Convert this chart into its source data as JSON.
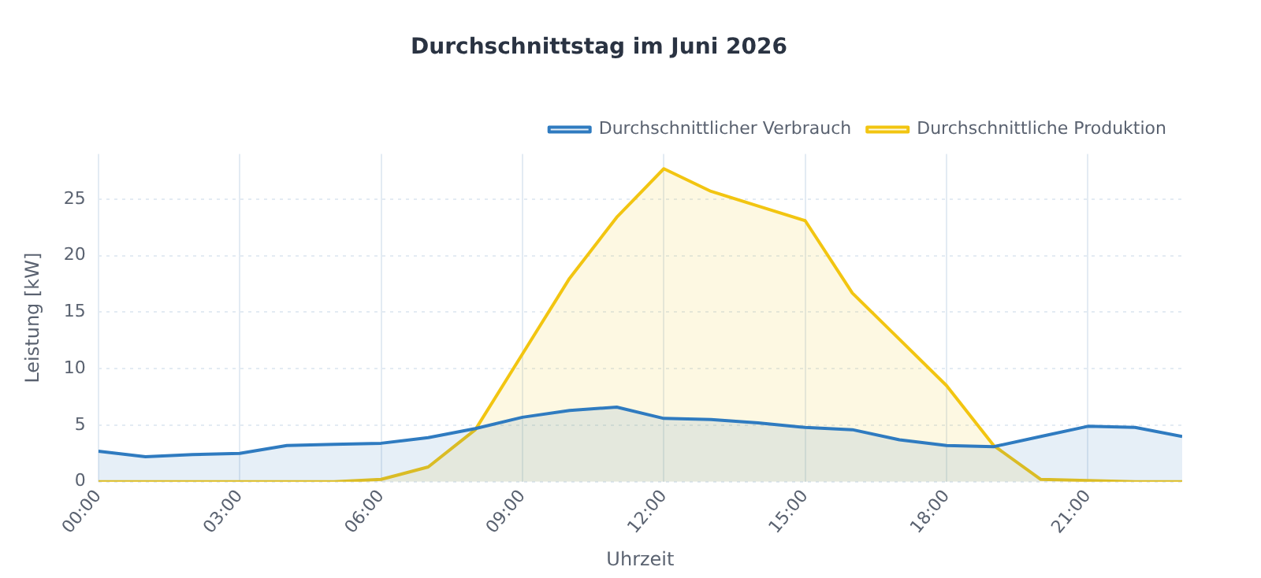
{
  "chart_data": {
    "type": "area",
    "title": "Durchschnittstag im Juni 2026",
    "xlabel": "Uhrzeit",
    "ylabel": "Leistung [kW]",
    "x": [
      0,
      1,
      2,
      3,
      4,
      5,
      6,
      7,
      8,
      9,
      10,
      11,
      12,
      13,
      14,
      15,
      16,
      17,
      18,
      19,
      20,
      21,
      22,
      23
    ],
    "series": [
      {
        "name": "Durchschnittlicher Verbrauch",
        "color": "#2f7bc0",
        "values": [
          2.7,
          2.2,
          2.4,
          2.5,
          3.2,
          3.3,
          3.4,
          3.9,
          4.7,
          5.7,
          6.3,
          6.6,
          5.6,
          5.5,
          5.2,
          4.8,
          4.6,
          3.7,
          3.2,
          3.1,
          4.0,
          4.9,
          4.8,
          4.0
        ]
      },
      {
        "name": "Durchschnittliche Produktion",
        "color": "#f2c511",
        "values": [
          0,
          0,
          0,
          0,
          0,
          0,
          0.2,
          1.3,
          4.6,
          11.3,
          18.0,
          23.4,
          27.7,
          25.7,
          24.4,
          23.1,
          16.7,
          12.6,
          8.5,
          3.2,
          0.2,
          0.1,
          0,
          0
        ]
      }
    ],
    "xlim": [
      0,
      23
    ],
    "xticks": [
      {
        "value": 0,
        "label": "00:00"
      },
      {
        "value": 3,
        "label": "03:00"
      },
      {
        "value": 6,
        "label": "06:00"
      },
      {
        "value": 9,
        "label": "09:00"
      },
      {
        "value": 12,
        "label": "12:00"
      },
      {
        "value": 15,
        "label": "15:00"
      },
      {
        "value": 18,
        "label": "18:00"
      },
      {
        "value": 21,
        "label": "21:00"
      }
    ],
    "ylim": [
      0,
      29
    ],
    "yticks": [
      0,
      5,
      10,
      15,
      20,
      25
    ],
    "grid": true,
    "legend": "top right"
  }
}
